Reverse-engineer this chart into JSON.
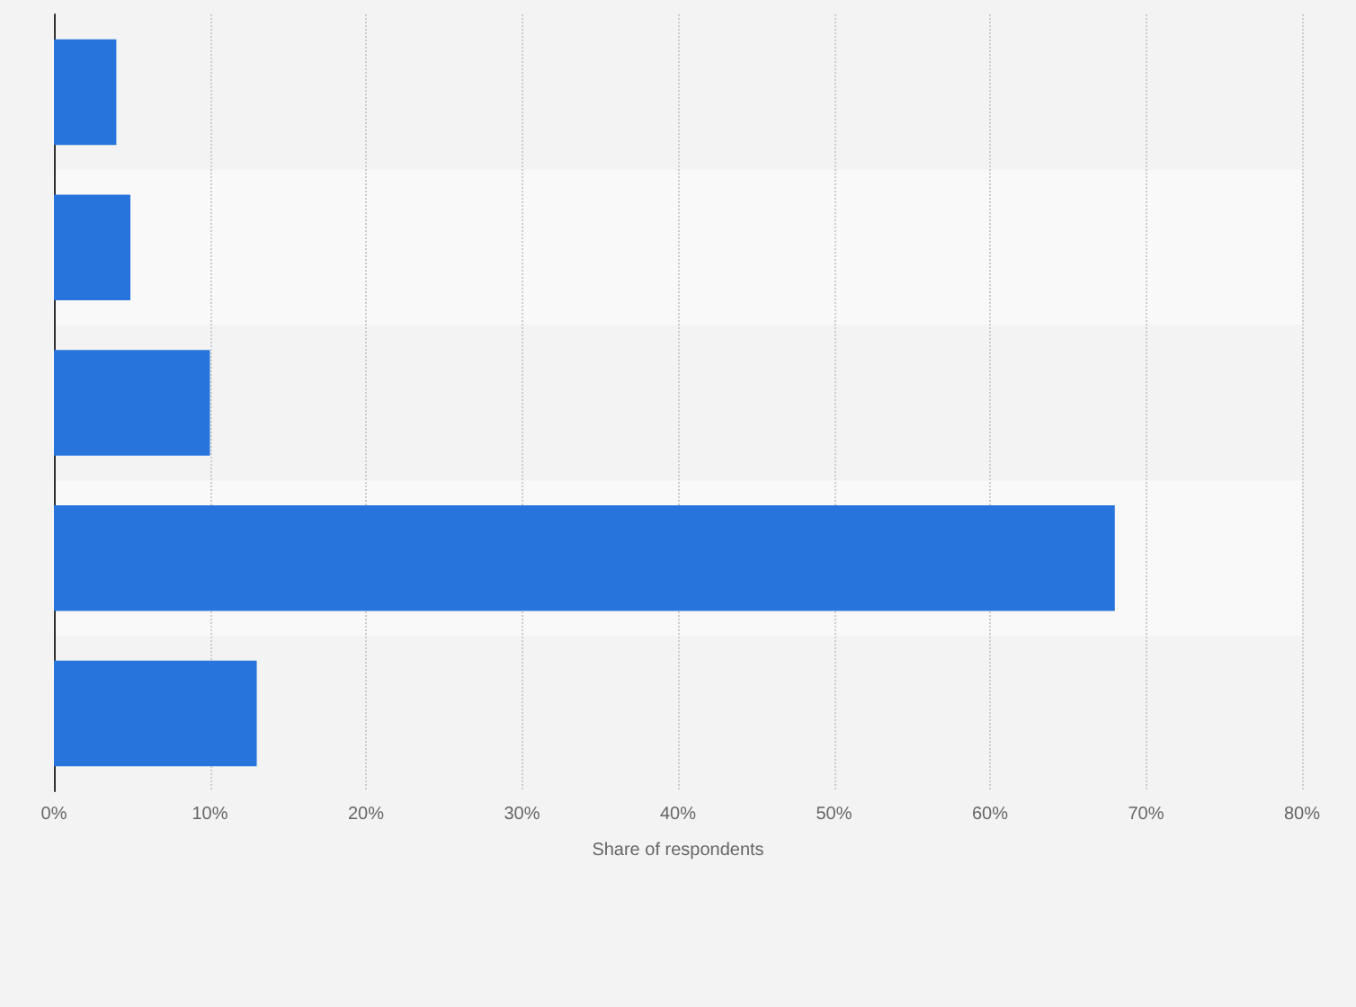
{
  "chart_data": {
    "type": "bar",
    "orientation": "horizontal",
    "categories": [
      null,
      null,
      null,
      null,
      null
    ],
    "values": [
      4,
      4.9,
      10,
      68,
      13
    ],
    "color": "#2775dc",
    "xlabel": "Share of respondents",
    "xlim": [
      0,
      80
    ],
    "xticks": [
      {
        "value": 0,
        "label": "0%"
      },
      {
        "value": 10,
        "label": "10%"
      },
      {
        "value": 20,
        "label": "20%"
      },
      {
        "value": 30,
        "label": "30%"
      },
      {
        "value": 40,
        "label": "40%"
      },
      {
        "value": 50,
        "label": "50%"
      },
      {
        "value": 60,
        "label": "60%"
      },
      {
        "value": 70,
        "label": "70%"
      },
      {
        "value": 80,
        "label": "80%"
      }
    ],
    "grid": "x"
  }
}
